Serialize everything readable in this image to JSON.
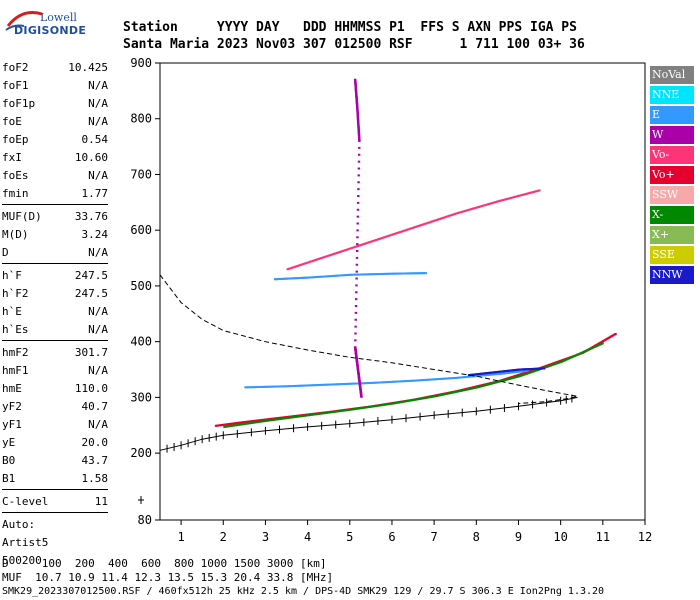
{
  "logo": {
    "line1": "Lowell",
    "line2": "DIGISONDE"
  },
  "header": {
    "line1": "Station     YYYY DAY   DDD HHMMSS P1  FFS S AXN PPS IGA PS",
    "line2": "Santa Maria 2023 Nov03 307 012500 RSF      1 711 100 03+ 36"
  },
  "params": [
    {
      "name": "foF2",
      "value": "10.425"
    },
    {
      "name": "foF1",
      "value": "N/A"
    },
    {
      "name": "foF1p",
      "value": "N/A"
    },
    {
      "name": "foE",
      "value": "N/A"
    },
    {
      "name": "foEp",
      "value": "0.54"
    },
    {
      "name": "fxI",
      "value": "10.60"
    },
    {
      "name": "foEs",
      "value": "N/A"
    },
    {
      "name": "fmin",
      "value": "1.77"
    },
    {
      "sep": true
    },
    {
      "name": "MUF(D)",
      "value": "33.76"
    },
    {
      "name": "M(D)",
      "value": "3.24"
    },
    {
      "name": "D",
      "value": "N/A"
    },
    {
      "sep": true
    },
    {
      "name": "h`F",
      "value": "247.5"
    },
    {
      "name": "h`F2",
      "value": "247.5"
    },
    {
      "name": "h`E",
      "value": "N/A"
    },
    {
      "name": "h`Es",
      "value": "N/A"
    },
    {
      "sep": true
    },
    {
      "name": "hmF2",
      "value": "301.7"
    },
    {
      "name": "hmF1",
      "value": "N/A"
    },
    {
      "name": "hmE",
      "value": "110.0"
    },
    {
      "name": "yF2",
      "value": "40.7"
    },
    {
      "name": "yF1",
      "value": "N/A"
    },
    {
      "name": "yE",
      "value": "20.0"
    },
    {
      "name": "B0",
      "value": "43.7"
    },
    {
      "name": "B1",
      "value": "1.58"
    },
    {
      "sep": true
    },
    {
      "name": "C-level",
      "value": "11"
    },
    {
      "sep": true
    },
    {
      "name": "Auto:",
      "value": ""
    },
    {
      "name": "Artist5",
      "value": ""
    },
    {
      "name": "500200",
      "value": ""
    }
  ],
  "legend": [
    {
      "label": "NoVal",
      "bg": "#808080",
      "fg": "#ffffff"
    },
    {
      "label": "NNE",
      "bg": "#00e5ff",
      "fg": "#ffffff"
    },
    {
      "label": "E",
      "bg": "#3399ff",
      "fg": "#ffffff"
    },
    {
      "label": "W",
      "bg": "#aa00aa",
      "fg": "#ffffff"
    },
    {
      "label": "Vo-",
      "bg": "#ff3377",
      "fg": "#ffffff"
    },
    {
      "label": "Vo+",
      "bg": "#e6002e",
      "fg": "#ffffff"
    },
    {
      "label": "SSW",
      "bg": "#f7a8a8",
      "fg": "#ffffff"
    },
    {
      "label": "X-",
      "bg": "#008800",
      "fg": "#ffffff"
    },
    {
      "label": "X+",
      "bg": "#88bb55",
      "fg": "#ffffff"
    },
    {
      "label": "SSE",
      "bg": "#cccc00",
      "fg": "#ffffff"
    },
    {
      "label": "NNW",
      "bg": "#1a1acc",
      "fg": "#ffffff"
    }
  ],
  "footer": {
    "line1": "D     100  200  400  600  800 1000 1500 3000 [km]",
    "line2": "MUF  10.7 10.9 11.4 12.3 13.5 15.3 20.4 33.8 [MHz]",
    "line3": "SMK29_2023307012500.RSF / 460fx512h 25 kHz 2.5 km / DPS-4D SMK29 129 / 29.7 S 306.3 E Ion2Png 1.3.20"
  },
  "chart_data": {
    "type": "scatter",
    "xlim": [
      0.5,
      12
    ],
    "ylim": [
      80,
      900
    ],
    "x_ticks": [
      1,
      2,
      3,
      4,
      5,
      6,
      7,
      8,
      9,
      10,
      11,
      12
    ],
    "y_ticks": [
      80,
      200,
      300,
      400,
      500,
      600,
      700,
      800,
      900
    ],
    "grid": false,
    "legend_position": "right",
    "series": [
      {
        "name": "Vo+",
        "color": "#e6002e",
        "points": [
          [
            1.8,
            249
          ],
          [
            2.5,
            256
          ],
          [
            3.5,
            265
          ],
          [
            4.5,
            274
          ],
          [
            5.5,
            284
          ],
          [
            6.5,
            296
          ],
          [
            7.5,
            311
          ],
          [
            8.5,
            329
          ],
          [
            9.5,
            353
          ],
          [
            10.5,
            380
          ],
          [
            11.3,
            415
          ]
        ]
      },
      {
        "name": "X-",
        "color": "#008800",
        "points": [
          [
            2,
            247
          ],
          [
            3,
            258
          ],
          [
            4,
            268
          ],
          [
            5,
            278
          ],
          [
            6,
            289
          ],
          [
            7,
            302
          ],
          [
            8,
            318
          ],
          [
            9,
            338
          ],
          [
            10,
            364
          ],
          [
            11,
            398
          ]
        ]
      },
      {
        "name": "E",
        "color": "#3399ff",
        "points": [
          [
            2.5,
            318
          ],
          [
            3.5,
            320
          ],
          [
            4.5,
            323
          ],
          [
            5.5,
            326
          ],
          [
            6.5,
            330
          ],
          [
            7.5,
            335
          ],
          [
            8.5,
            342
          ],
          [
            9.2,
            348
          ]
        ]
      },
      {
        "name": "NNW",
        "color": "#1a1acc",
        "points": [
          [
            7.8,
            340
          ],
          [
            8.4,
            345
          ],
          [
            9,
            350
          ],
          [
            9.6,
            352
          ]
        ]
      },
      {
        "name": "Vo-",
        "color": "#ff3377",
        "points": [
          [
            3.5,
            530
          ],
          [
            4.5,
            555
          ],
          [
            5.5,
            580
          ],
          [
            6.5,
            605
          ],
          [
            7.5,
            630
          ],
          [
            8.5,
            652
          ],
          [
            9.5,
            672
          ]
        ]
      },
      {
        "name": "E2",
        "color": "#3399ff",
        "points": [
          [
            3.2,
            512
          ],
          [
            4,
            515
          ],
          [
            5,
            520
          ],
          [
            6,
            522
          ],
          [
            6.8,
            523
          ]
        ]
      },
      {
        "name": "W",
        "color": "#aa00aa",
        "points": [
          [
            5.1,
            870
          ],
          [
            5.15,
            820
          ],
          [
            5.2,
            760
          ],
          [
            5.1,
            390
          ],
          [
            5.15,
            360
          ],
          [
            5.2,
            330
          ],
          [
            5.25,
            300
          ]
        ]
      }
    ],
    "profile_curve": [
      [
        0.5,
        520
      ],
      [
        1,
        470
      ],
      [
        1.5,
        440
      ],
      [
        2,
        420
      ],
      [
        3,
        400
      ],
      [
        4,
        385
      ],
      [
        5,
        372
      ],
      [
        6,
        362
      ],
      [
        7,
        350
      ],
      [
        8,
        338
      ],
      [
        9,
        322
      ],
      [
        9.8,
        310
      ],
      [
        10.4,
        302
      ],
      [
        10.2,
        298
      ],
      [
        9.6,
        292
      ],
      [
        9,
        289
      ]
    ],
    "virtual_height_trace": [
      [
        0.5,
        205
      ],
      [
        1,
        214
      ],
      [
        1.5,
        225
      ],
      [
        2,
        232
      ],
      [
        3,
        240
      ],
      [
        4,
        247
      ],
      [
        5,
        253
      ],
      [
        6,
        260
      ],
      [
        7,
        268
      ],
      [
        8,
        275
      ],
      [
        9,
        284
      ],
      [
        10,
        294
      ],
      [
        10.4,
        300
      ]
    ]
  }
}
